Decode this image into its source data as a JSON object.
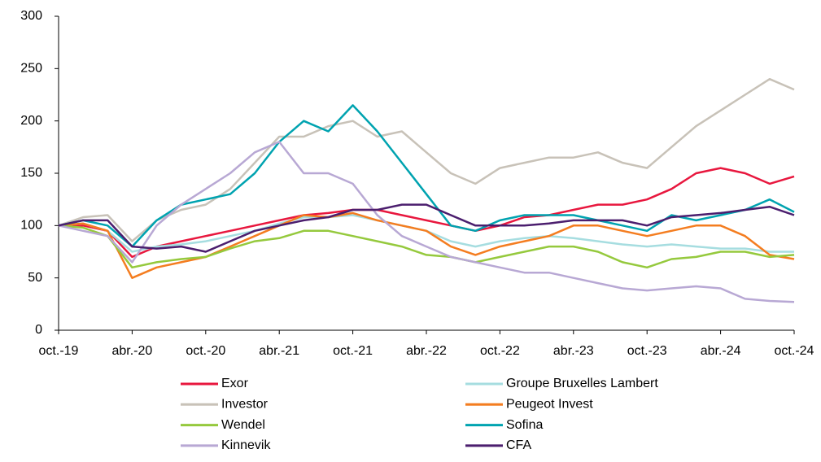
{
  "chart_data": {
    "type": "line",
    "categories": [
      "oct.-19",
      null,
      null,
      "abr.-20",
      null,
      null,
      "oct.-20",
      null,
      null,
      "abr.-21",
      null,
      null,
      "oct.-21",
      null,
      null,
      "abr.-22",
      null,
      null,
      "oct.-22",
      null,
      null,
      "abr.-23",
      null,
      null,
      "oct.-23",
      null,
      null,
      "abr.-24",
      null,
      null,
      "oct.-24"
    ],
    "ylim": [
      0,
      300
    ],
    "yticks": [
      0,
      50,
      100,
      150,
      200,
      250,
      300
    ],
    "grid": false,
    "series": [
      {
        "name": "Exor",
        "color": "#e8173e",
        "values": [
          100,
          100,
          95,
          70,
          80,
          85,
          90,
          95,
          100,
          105,
          110,
          112,
          115,
          115,
          110,
          105,
          100,
          95,
          100,
          108,
          110,
          115,
          120,
          120,
          125,
          135,
          150,
          155,
          150,
          140,
          147
        ]
      },
      {
        "name": "Groupe Bruxelles Lambert",
        "color": "#a6dde0",
        "values": [
          100,
          102,
          95,
          75,
          80,
          82,
          85,
          90,
          95,
          102,
          108,
          108,
          110,
          105,
          100,
          95,
          85,
          80,
          85,
          88,
          90,
          88,
          85,
          82,
          80,
          82,
          80,
          78,
          78,
          75,
          75
        ]
      },
      {
        "name": "Investor",
        "color": "#c8c2b8",
        "values": [
          100,
          108,
          110,
          85,
          105,
          115,
          120,
          135,
          160,
          185,
          185,
          195,
          200,
          185,
          190,
          170,
          150,
          140,
          155,
          160,
          165,
          165,
          170,
          160,
          155,
          175,
          195,
          210,
          225,
          240,
          230
        ]
      },
      {
        "name": "Peugeot Invest",
        "color": "#f47d20",
        "values": [
          100,
          102,
          95,
          50,
          60,
          65,
          70,
          80,
          90,
          100,
          110,
          108,
          112,
          105,
          100,
          95,
          80,
          72,
          80,
          85,
          90,
          100,
          100,
          95,
          90,
          95,
          100,
          100,
          90,
          72,
          68
        ]
      },
      {
        "name": "Wendel",
        "color": "#95c93d",
        "values": [
          100,
          98,
          90,
          60,
          65,
          68,
          70,
          78,
          85,
          88,
          95,
          95,
          90,
          85,
          80,
          72,
          70,
          65,
          70,
          75,
          80,
          80,
          75,
          65,
          60,
          68,
          70,
          75,
          75,
          70,
          72
        ]
      },
      {
        "name": "Sofina",
        "color": "#00a3b0",
        "values": [
          100,
          105,
          100,
          80,
          105,
          120,
          125,
          130,
          150,
          180,
          200,
          190,
          215,
          190,
          160,
          130,
          100,
          95,
          105,
          110,
          110,
          110,
          105,
          100,
          95,
          110,
          105,
          110,
          115,
          125,
          113
        ]
      },
      {
        "name": "Kinnevik",
        "color": "#b8a8d4",
        "values": [
          100,
          95,
          90,
          65,
          100,
          120,
          135,
          150,
          170,
          180,
          150,
          150,
          140,
          110,
          90,
          80,
          70,
          65,
          60,
          55,
          55,
          50,
          45,
          40,
          38,
          40,
          42,
          40,
          30,
          28,
          27
        ]
      },
      {
        "name": "CFA",
        "color": "#4b1e6e",
        "values": [
          100,
          105,
          105,
          80,
          78,
          80,
          75,
          85,
          95,
          100,
          105,
          108,
          115,
          115,
          120,
          120,
          110,
          100,
          100,
          100,
          102,
          105,
          105,
          105,
          100,
          108,
          110,
          112,
          115,
          118,
          110
        ]
      }
    ]
  }
}
